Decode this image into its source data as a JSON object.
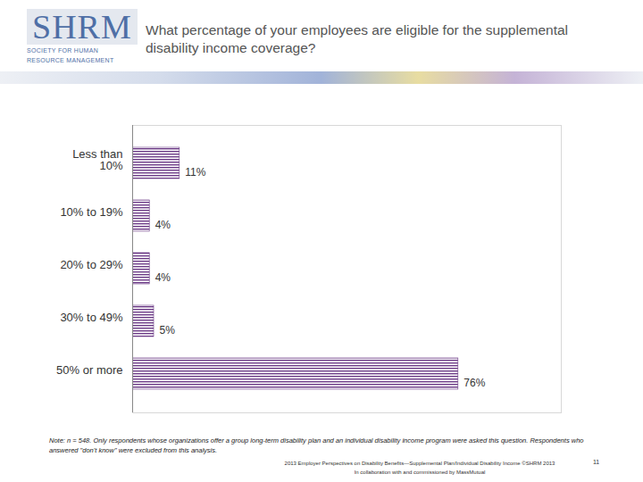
{
  "chart_data": {
    "type": "bar",
    "orientation": "horizontal",
    "title": "What percentage of your employees are eligible for the supplemental disability income coverage?",
    "categories": [
      "Less than 10%",
      "10% to 19%",
      "20% to 29%",
      "30% to 49%",
      "50% or more"
    ],
    "values": [
      11,
      4,
      4,
      5,
      76
    ],
    "value_labels": [
      "11%",
      "4%",
      "4%",
      "5%",
      "76%"
    ],
    "data_labels": true,
    "color": "#6b3a86",
    "xlim": [
      0,
      100
    ],
    "xticks": [],
    "tick_labels": "y",
    "note": "Note: n = 548. Only respondents whose organizations offer a group long-term disability plan and an individual disability income program were asked this question. Respondents who answered \"don't know\" were excluded from this analysis.",
    "footer": [
      "2013 Employer Perspectives on Disability Benefits—Supplemental Plan/Individual Disability Income ©SHRM 2013",
      "In collaboration with and commissioned by MassMutual"
    ],
    "page": "11",
    "logo": [
      "SHRM",
      "SOCIETY FOR HUMAN",
      "RESOURCE MANAGEMENT"
    ]
  }
}
